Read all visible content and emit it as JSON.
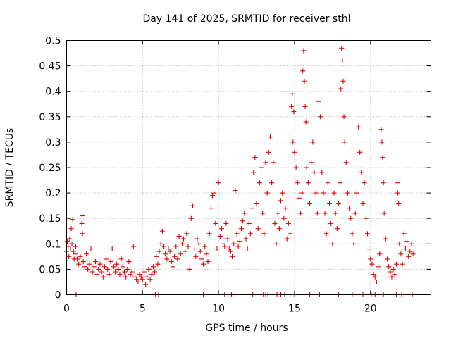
{
  "chart_data": {
    "type": "scatter",
    "title": "Day 141 of 2025, SRMTID for receiver sthl",
    "xlabel": "GPS time / hours",
    "ylabel": "SRMTID / TECUs",
    "xlim": [
      0,
      23.975
    ],
    "ylim": [
      0,
      0.5
    ],
    "x_ticks": [
      0,
      5,
      10,
      15,
      20
    ],
    "y_ticks": [
      0,
      0.05,
      0.1,
      0.15,
      0.2,
      0.25,
      0.3,
      0.35,
      0.4,
      0.45,
      0.5
    ],
    "x_tick_labels": [
      "0",
      "5",
      "10",
      "15",
      "20"
    ],
    "y_tick_labels": [
      "0",
      "0.05",
      "0.1",
      "0.15",
      "0.2",
      "0.25",
      "0.3",
      "0.35",
      "0.4",
      "0.45",
      "0.5"
    ],
    "grid": true,
    "legend": "none",
    "marker": "+",
    "series": [
      {
        "name": "SRMTID",
        "color": "#e00000",
        "points": [
          [
            0.0,
            0.085
          ],
          [
            0.05,
            0.105
          ],
          [
            0.1,
            0.095
          ],
          [
            0.15,
            0.075
          ],
          [
            0.2,
            0.11
          ],
          [
            0.25,
            0.09
          ],
          [
            0.3,
            0.13
          ],
          [
            0.35,
            0.1
          ],
          [
            0.4,
            0.148
          ],
          [
            0.45,
            0.085
          ],
          [
            0.5,
            0.07
          ],
          [
            0.55,
            0.08
          ],
          [
            0.6,
            0.095
          ],
          [
            0.7,
            0.07
          ],
          [
            0.8,
            0.06
          ],
          [
            0.9,
            0.075
          ],
          [
            1.0,
            0.14
          ],
          [
            1.02,
            0.155
          ],
          [
            1.05,
            0.12
          ],
          [
            1.1,
            0.065
          ],
          [
            1.2,
            0.055
          ],
          [
            1.3,
            0.08
          ],
          [
            1.4,
            0.05
          ],
          [
            1.5,
            0.06
          ],
          [
            1.6,
            0.09
          ],
          [
            1.7,
            0.045
          ],
          [
            1.8,
            0.055
          ],
          [
            1.9,
            0.065
          ],
          [
            2.0,
            0.04
          ],
          [
            2.1,
            0.05
          ],
          [
            2.2,
            0.06
          ],
          [
            2.3,
            0.045
          ],
          [
            2.4,
            0.035
          ],
          [
            2.5,
            0.055
          ],
          [
            2.6,
            0.07
          ],
          [
            2.7,
            0.05
          ],
          [
            2.8,
            0.04
          ],
          [
            2.9,
            0.065
          ],
          [
            3.0,
            0.09
          ],
          [
            3.1,
            0.055
          ],
          [
            3.2,
            0.045
          ],
          [
            3.3,
            0.06
          ],
          [
            3.4,
            0.05
          ],
          [
            3.5,
            0.04
          ],
          [
            3.6,
            0.07
          ],
          [
            3.7,
            0.055
          ],
          [
            3.8,
            0.045
          ],
          [
            3.9,
            0.035
          ],
          [
            4.0,
            0.05
          ],
          [
            4.1,
            0.065
          ],
          [
            4.2,
            0.04
          ],
          [
            4.3,
            0.045
          ],
          [
            4.4,
            0.095
          ],
          [
            4.5,
            0.035
          ],
          [
            4.6,
            0.03
          ],
          [
            4.7,
            0.025
          ],
          [
            4.8,
            0.04
          ],
          [
            4.9,
            0.035
          ],
          [
            5.0,
            0.03
          ],
          [
            5.1,
            0.045
          ],
          [
            5.2,
            0.02
          ],
          [
            5.3,
            0.035
          ],
          [
            5.4,
            0.05
          ],
          [
            5.5,
            0.03
          ],
          [
            5.6,
            0.04
          ],
          [
            5.7,
            0.055
          ],
          [
            5.8,
            0.045
          ],
          [
            5.9,
            0.075
          ],
          [
            6.0,
            0.06
          ],
          [
            6.1,
            0.085
          ],
          [
            6.2,
            0.1
          ],
          [
            6.3,
            0.125
          ],
          [
            6.4,
            0.095
          ],
          [
            6.5,
            0.08
          ],
          [
            6.6,
            0.07
          ],
          [
            6.7,
            0.09
          ],
          [
            6.8,
            0.085
          ],
          [
            6.9,
            0.065
          ],
          [
            7.0,
            0.055
          ],
          [
            7.1,
            0.075
          ],
          [
            7.2,
            0.095
          ],
          [
            7.3,
            0.07
          ],
          [
            7.4,
            0.115
          ],
          [
            7.5,
            0.08
          ],
          [
            7.6,
            0.1
          ],
          [
            7.7,
            0.11
          ],
          [
            7.8,
            0.085
          ],
          [
            7.9,
            0.12
          ],
          [
            8.0,
            0.095
          ],
          [
            8.1,
            0.05
          ],
          [
            8.2,
            0.15
          ],
          [
            8.3,
            0.175
          ],
          [
            8.4,
            0.09
          ],
          [
            8.5,
            0.075
          ],
          [
            8.6,
            0.11
          ],
          [
            8.7,
            0.1
          ],
          [
            8.8,
            0.085
          ],
          [
            8.9,
            0.07
          ],
          [
            9.0,
            0.06
          ],
          [
            9.1,
            0.095
          ],
          [
            9.2,
            0.08
          ],
          [
            9.3,
            0.065
          ],
          [
            9.4,
            0.12
          ],
          [
            9.5,
            0.17
          ],
          [
            9.6,
            0.195
          ],
          [
            9.7,
            0.2
          ],
          [
            9.8,
            0.14
          ],
          [
            9.9,
            0.09
          ],
          [
            10.0,
            0.22
          ],
          [
            10.1,
            0.115
          ],
          [
            10.2,
            0.13
          ],
          [
            10.3,
            0.1
          ],
          [
            10.4,
            0.095
          ],
          [
            10.5,
            0.14
          ],
          [
            10.6,
            0.11
          ],
          [
            10.7,
            0.09
          ],
          [
            10.8,
            0.085
          ],
          [
            10.9,
            0.075
          ],
          [
            11.0,
            0.1
          ],
          [
            11.1,
            0.205
          ],
          [
            11.2,
            0.12
          ],
          [
            11.3,
            0.095
          ],
          [
            11.4,
            0.105
          ],
          [
            11.5,
            0.13
          ],
          [
            11.6,
            0.145
          ],
          [
            11.7,
            0.16
          ],
          [
            11.8,
            0.11
          ],
          [
            11.9,
            0.09
          ],
          [
            12.0,
            0.14
          ],
          [
            12.1,
            0.12
          ],
          [
            12.2,
            0.17
          ],
          [
            12.3,
            0.24
          ],
          [
            12.4,
            0.27
          ],
          [
            12.5,
            0.18
          ],
          [
            12.6,
            0.13
          ],
          [
            12.7,
            0.22
          ],
          [
            12.8,
            0.25
          ],
          [
            12.9,
            0.16
          ],
          [
            13.0,
            0.12
          ],
          [
            13.1,
            0.26
          ],
          [
            13.2,
            0.2
          ],
          [
            13.3,
            0.28
          ],
          [
            13.4,
            0.31
          ],
          [
            13.5,
            0.22
          ],
          [
            13.6,
            0.26
          ],
          [
            13.7,
            0.14
          ],
          [
            13.8,
            0.1
          ],
          [
            13.9,
            0.16
          ],
          [
            14.0,
            0.13
          ],
          [
            14.1,
            0.185
          ],
          [
            14.2,
            0.2
          ],
          [
            14.3,
            0.15
          ],
          [
            14.4,
            0.17
          ],
          [
            14.5,
            0.11
          ],
          [
            14.6,
            0.14
          ],
          [
            14.7,
            0.12
          ],
          [
            14.8,
            0.37
          ],
          [
            14.85,
            0.395
          ],
          [
            14.9,
            0.3
          ],
          [
            14.95,
            0.36
          ],
          [
            15.0,
            0.28
          ],
          [
            15.1,
            0.25
          ],
          [
            15.2,
            0.22
          ],
          [
            15.3,
            0.19
          ],
          [
            15.4,
            0.16
          ],
          [
            15.5,
            0.2
          ],
          [
            15.55,
            0.44
          ],
          [
            15.6,
            0.48
          ],
          [
            15.65,
            0.42
          ],
          [
            15.7,
            0.37
          ],
          [
            15.75,
            0.34
          ],
          [
            15.8,
            0.25
          ],
          [
            15.9,
            0.22
          ],
          [
            16.0,
            0.18
          ],
          [
            16.1,
            0.26
          ],
          [
            16.2,
            0.3
          ],
          [
            16.3,
            0.24
          ],
          [
            16.4,
            0.2
          ],
          [
            16.5,
            0.16
          ],
          [
            16.6,
            0.38
          ],
          [
            16.7,
            0.35
          ],
          [
            16.8,
            0.24
          ],
          [
            16.9,
            0.2
          ],
          [
            17.0,
            0.16
          ],
          [
            17.1,
            0.12
          ],
          [
            17.2,
            0.22
          ],
          [
            17.3,
            0.18
          ],
          [
            17.4,
            0.14
          ],
          [
            17.5,
            0.1
          ],
          [
            17.6,
            0.2
          ],
          [
            17.7,
            0.16
          ],
          [
            17.8,
            0.13
          ],
          [
            17.9,
            0.18
          ],
          [
            18.0,
            0.22
          ],
          [
            18.05,
            0.405
          ],
          [
            18.1,
            0.485
          ],
          [
            18.15,
            0.46
          ],
          [
            18.2,
            0.42
          ],
          [
            18.25,
            0.35
          ],
          [
            18.3,
            0.3
          ],
          [
            18.4,
            0.26
          ],
          [
            18.5,
            0.2
          ],
          [
            18.6,
            0.17
          ],
          [
            18.7,
            0.15
          ],
          [
            18.8,
            0.12
          ],
          [
            18.9,
            0.1
          ],
          [
            19.0,
            0.16
          ],
          [
            19.1,
            0.2
          ],
          [
            19.2,
            0.33
          ],
          [
            19.3,
            0.28
          ],
          [
            19.4,
            0.24
          ],
          [
            19.5,
            0.18
          ],
          [
            19.6,
            0.22
          ],
          [
            19.7,
            0.15
          ],
          [
            19.8,
            0.12
          ],
          [
            19.9,
            0.09
          ],
          [
            20.0,
            0.07
          ],
          [
            20.1,
            0.06
          ],
          [
            20.2,
            0.04
          ],
          [
            20.3,
            0.035
          ],
          [
            20.4,
            0.025
          ],
          [
            20.5,
            0.055
          ],
          [
            20.6,
            0.08
          ],
          [
            20.7,
            0.325
          ],
          [
            20.75,
            0.3
          ],
          [
            20.8,
            0.27
          ],
          [
            20.85,
            0.22
          ],
          [
            20.9,
            0.16
          ],
          [
            21.0,
            0.11
          ],
          [
            21.1,
            0.07
          ],
          [
            21.2,
            0.055
          ],
          [
            21.3,
            0.045
          ],
          [
            21.4,
            0.035
          ],
          [
            21.5,
            0.05
          ],
          [
            21.6,
            0.04
          ],
          [
            21.7,
            0.06
          ],
          [
            21.75,
            0.22
          ],
          [
            21.8,
            0.2
          ],
          [
            21.85,
            0.18
          ],
          [
            21.9,
            0.1
          ],
          [
            22.0,
            0.08
          ],
          [
            22.1,
            0.06
          ],
          [
            22.2,
            0.12
          ],
          [
            22.3,
            0.09
          ],
          [
            22.4,
            0.105
          ],
          [
            22.5,
            0.075
          ],
          [
            22.6,
            0.085
          ],
          [
            22.7,
            0.1
          ],
          [
            22.8,
            0.08
          ],
          [
            0.62,
            0.0
          ],
          [
            5.75,
            0.0
          ],
          [
            5.85,
            0.0
          ],
          [
            6.05,
            0.0
          ],
          [
            9.0,
            0.0
          ],
          [
            10.4,
            0.0
          ],
          [
            10.85,
            0.0
          ],
          [
            10.95,
            0.0
          ],
          [
            12.25,
            0.0
          ],
          [
            12.95,
            0.0
          ],
          [
            13.1,
            0.0
          ],
          [
            13.25,
            0.0
          ],
          [
            13.85,
            0.0
          ],
          [
            14.1,
            0.0
          ],
          [
            14.35,
            0.0
          ],
          [
            15.0,
            0.0
          ],
          [
            15.3,
            0.0
          ],
          [
            16.0,
            0.0
          ],
          [
            16.65,
            0.0
          ],
          [
            17.9,
            0.0
          ],
          [
            18.8,
            0.0
          ],
          [
            19.5,
            0.0
          ],
          [
            20.05,
            0.0
          ],
          [
            20.3,
            0.0
          ],
          [
            20.85,
            0.0
          ],
          [
            21.7,
            0.0
          ],
          [
            22.05,
            0.0
          ],
          [
            22.75,
            0.0
          ]
        ]
      }
    ]
  }
}
